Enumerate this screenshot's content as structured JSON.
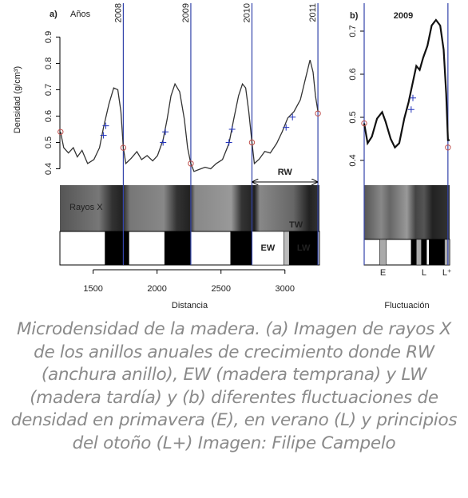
{
  "chart_data": [
    {
      "type": "line",
      "label": "a)",
      "subtitle": "Años",
      "ylabel": "Densidad (g/cm³)",
      "xlabel": "Distancia",
      "color": "#333333",
      "x": [
        1245,
        1270,
        1307,
        1345,
        1376,
        1413,
        1457,
        1506,
        1550,
        1581,
        1624,
        1661,
        1693,
        1717,
        1736,
        1755,
        1798,
        1842,
        1879,
        1922,
        1966,
        2003,
        2047,
        2078,
        2109,
        2140,
        2177,
        2214,
        2239,
        2264,
        2289,
        2326,
        2376,
        2419,
        2463,
        2512,
        2562,
        2599,
        2637,
        2668,
        2693,
        2717,
        2742,
        2761,
        2798,
        2842,
        2885,
        2935,
        2978,
        3022,
        3071,
        3121,
        3158,
        3196,
        3220,
        3239,
        3258
      ],
      "values": [
        0.54,
        0.48,
        0.46,
        0.48,
        0.445,
        0.47,
        0.42,
        0.435,
        0.48,
        0.557,
        0.647,
        0.707,
        0.7,
        0.617,
        0.48,
        0.42,
        0.44,
        0.465,
        0.435,
        0.45,
        0.43,
        0.45,
        0.51,
        0.587,
        0.677,
        0.722,
        0.692,
        0.587,
        0.48,
        0.42,
        0.39,
        0.397,
        0.406,
        0.4,
        0.42,
        0.435,
        0.496,
        0.587,
        0.677,
        0.722,
        0.707,
        0.617,
        0.5,
        0.42,
        0.436,
        0.466,
        0.46,
        0.496,
        0.54,
        0.593,
        0.617,
        0.662,
        0.737,
        0.813,
        0.767,
        0.677,
        0.617
      ],
      "xlim": [
        1240,
        3270
      ],
      "ylim": [
        0.35,
        0.98
      ],
      "xticks": [
        1500,
        2000,
        2500,
        3000
      ],
      "yticks": [
        0.4,
        0.5,
        0.6,
        0.7,
        0.8,
        0.9
      ],
      "circles": {
        "color": "#c0504d",
        "x": [
          1245,
          1736,
          2264,
          2742,
          3258
        ],
        "values": [
          0.54,
          0.48,
          0.42,
          0.5,
          0.61
        ]
      },
      "crosses": {
        "color": "#2233bb",
        "x": [
          1581,
          1599,
          2047,
          2065,
          2562,
          2587,
          3009,
          3059
        ],
        "values": [
          0.527,
          0.563,
          0.5,
          0.54,
          0.5,
          0.55,
          0.557,
          0.596
        ]
      },
      "year_lines": {
        "color": "#3344aa",
        "x": [
          1736,
          2264,
          2742,
          3258
        ],
        "labels": [
          "2008",
          "2009",
          "2010",
          "2011"
        ]
      },
      "xray_label": "Rayos X",
      "tw_label": "TW",
      "rw_label": "RW",
      "block_labels": "inside",
      "blocks": [
        {
          "start": 1593,
          "end": 1780,
          "color": "#000000"
        },
        {
          "start": 2059,
          "end": 2264,
          "color": "#000000"
        },
        {
          "start": 2575,
          "end": 2742,
          "color": "#000000"
        },
        {
          "start": 2742,
          "end": 2991,
          "color": "#ffffff",
          "label": "EW"
        },
        {
          "start": 2991,
          "end": 3034,
          "color": "#bbbbbb"
        },
        {
          "start": 3034,
          "end": 3258,
          "color": "#000000",
          "label": "LW"
        }
      ]
    },
    {
      "type": "line",
      "label": "b)",
      "title": "2009",
      "xlabel": "Fluctuación",
      "color": "#111111",
      "x": [
        0,
        4,
        9,
        15,
        21,
        25,
        31,
        36,
        41,
        47,
        52,
        57,
        61,
        65,
        69,
        74,
        79,
        84,
        89,
        93,
        96,
        98,
        100
      ],
      "values": [
        0.486,
        0.44,
        0.455,
        0.497,
        0.512,
        0.49,
        0.45,
        0.43,
        0.44,
        0.498,
        0.535,
        0.582,
        0.619,
        0.61,
        0.638,
        0.666,
        0.713,
        0.726,
        0.713,
        0.657,
        0.554,
        0.447,
        0.447
      ],
      "xlim": [
        0,
        100
      ],
      "ylim": [
        0.35,
        0.75
      ],
      "yticks": [
        0.4,
        0.5,
        0.6,
        0.7
      ],
      "circles": {
        "color": "#c0504d",
        "x": [
          0,
          98
        ],
        "values": [
          0.486,
          0.43
        ]
      },
      "crosses": {
        "color": "#2233bb",
        "x": [
          55,
          57
        ],
        "values": [
          0.518,
          0.545
        ]
      },
      "year_lines": {
        "color": "#3344aa",
        "x": [
          0,
          98
        ]
      },
      "block_labels": "below",
      "blocks": [
        {
          "start": 18,
          "end": 26,
          "color": "#aaaaaa",
          "label": "E"
        },
        {
          "start": 55,
          "end": 61,
          "color": "#000000"
        },
        {
          "start": 61,
          "end": 67,
          "color": "#aaaaaa"
        },
        {
          "start": 67,
          "end": 73,
          "color": "#000000",
          "label": "L"
        },
        {
          "start": 76,
          "end": 94,
          "color": "#000000"
        },
        {
          "start": 94,
          "end": 100,
          "color": "#aaaaaa",
          "label": "L⁺"
        }
      ]
    }
  ],
  "caption": "Microdensidad de la madera. (a) Imagen de rayos X de los anillos anuales de crecimiento donde RW (anchura anillo), EW (madera temprana) y LW (madera tardía) y (b) diferentes fluctuaciones de densidad en primavera (E), en verano (L) y principios del otoño (L+) Imagen: Filipe Campelo"
}
